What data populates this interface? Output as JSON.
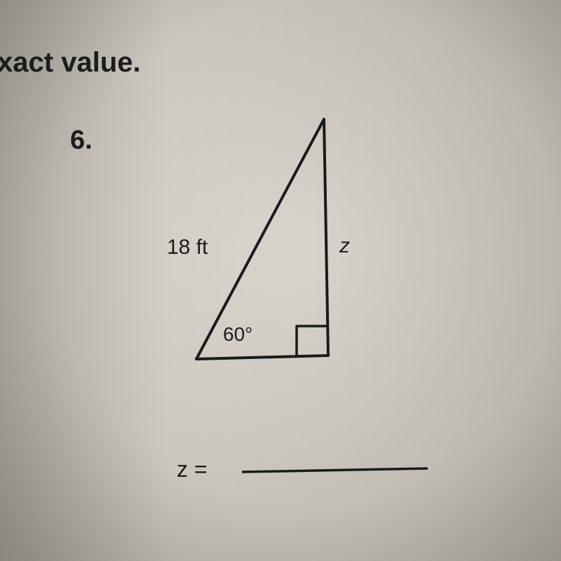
{
  "header": {
    "text": "xact value."
  },
  "problem": {
    "number": "6.",
    "hypotenuse_label": "18 ft",
    "side_label": "z",
    "angle_label": "60°",
    "answer_label": "z ="
  }
}
